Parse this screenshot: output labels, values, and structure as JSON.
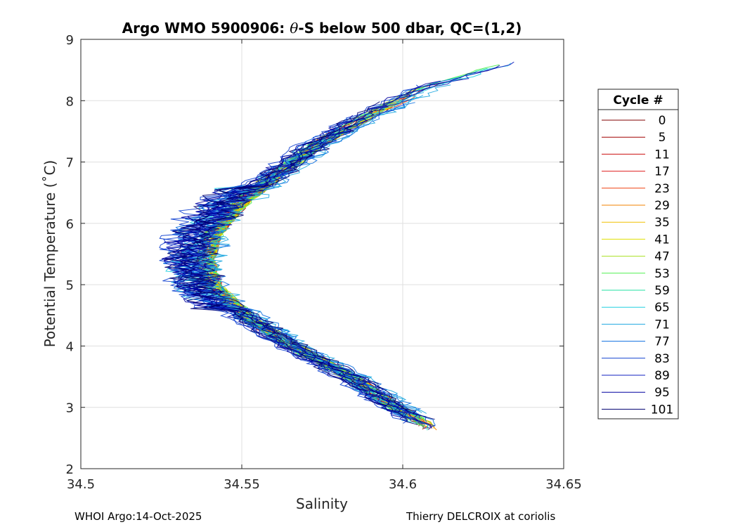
{
  "chart_data": {
    "type": "line",
    "title": "Argo WMO 5900906: θ-S below 500 dbar,  QC=(1,2)",
    "title_parts": [
      "Argo WMO 5900906: ",
      "θ",
      "-S below 500 dbar,  QC=(1,2)"
    ],
    "xlabel": "Salinity",
    "ylabel": "Potential Temperature (˚C)",
    "xlim": [
      34.5,
      34.65
    ],
    "ylim": [
      2,
      9
    ],
    "xticks": [
      34.5,
      34.55,
      34.6,
      34.65
    ],
    "xtick_labels": [
      "34.5",
      "34.55",
      "34.6",
      "34.65"
    ],
    "yticks": [
      2,
      3,
      4,
      5,
      6,
      7,
      8,
      9
    ],
    "ytick_labels": [
      "2",
      "3",
      "4",
      "5",
      "6",
      "7",
      "8",
      "9"
    ],
    "grid": true,
    "legend_title": "Cycle #",
    "legend_placement": "outside-right",
    "series": [
      {
        "name": "0",
        "color": "#800000"
      },
      {
        "name": "5",
        "color": "#a00000"
      },
      {
        "name": "11",
        "color": "#cc1010"
      },
      {
        "name": "17",
        "color": "#e02020"
      },
      {
        "name": "23",
        "color": "#f04010"
      },
      {
        "name": "29",
        "color": "#f08000"
      },
      {
        "name": "35",
        "color": "#f0c000"
      },
      {
        "name": "41",
        "color": "#e0e000"
      },
      {
        "name": "47",
        "color": "#a8e020"
      },
      {
        "name": "53",
        "color": "#50f050"
      },
      {
        "name": "59",
        "color": "#20e0a0"
      },
      {
        "name": "65",
        "color": "#20d0e0"
      },
      {
        "name": "71",
        "color": "#20a8e0"
      },
      {
        "name": "77",
        "color": "#1070e0"
      },
      {
        "name": "83",
        "color": "#1040d0"
      },
      {
        "name": "89",
        "color": "#1020c0"
      },
      {
        "name": "95",
        "color": "#0000a0"
      },
      {
        "name": "101",
        "color": "#000070"
      }
    ],
    "profile_shape": {
      "theta": [
        2.7,
        3.0,
        3.5,
        4.0,
        4.5,
        5.0,
        5.4,
        5.8,
        6.3,
        6.8,
        7.3,
        7.8,
        8.2,
        8.5
      ],
      "salinity": [
        34.608,
        34.598,
        34.584,
        34.566,
        34.551,
        34.541,
        34.539,
        34.541,
        34.549,
        34.561,
        34.574,
        34.591,
        34.607,
        34.626
      ]
    }
  },
  "footer": {
    "left": "WHOI Argo:14-Oct-2025",
    "right": "Thierry DELCROIX at coriolis"
  }
}
